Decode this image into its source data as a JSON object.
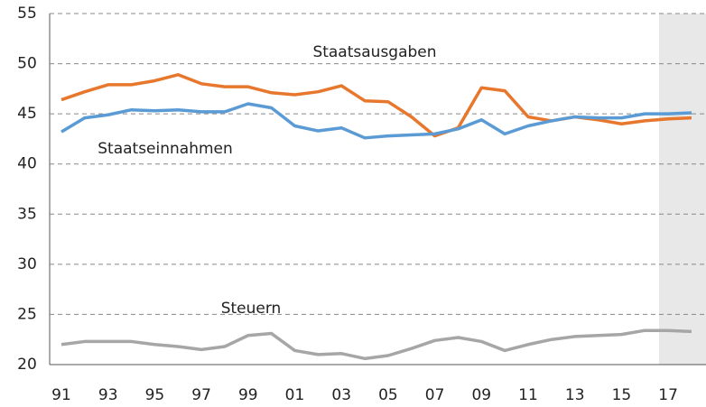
{
  "chart_data": {
    "type": "line",
    "categories": [
      "91",
      null,
      "93",
      null,
      "95",
      null,
      "97",
      null,
      "99",
      null,
      "01",
      null,
      "03",
      null,
      "05",
      null,
      "07",
      null,
      "09",
      null,
      "11",
      null,
      "13",
      null,
      "15",
      null,
      "17",
      null
    ],
    "series": [
      {
        "name": "Staatsausgaben",
        "color": "#e8772e",
        "values": [
          46.4,
          47.2,
          47.9,
          47.9,
          48.3,
          48.9,
          48.0,
          47.7,
          47.7,
          47.1,
          46.9,
          47.2,
          47.8,
          46.3,
          46.2,
          44.7,
          42.8,
          43.6,
          47.6,
          47.3,
          44.7,
          44.3,
          44.7,
          44.4,
          44.0,
          44.3,
          44.5,
          44.6
        ]
      },
      {
        "name": "Staatseinnahmen",
        "color": "#5b9bd5",
        "values": [
          43.2,
          44.6,
          44.9,
          45.4,
          45.3,
          45.4,
          45.2,
          45.2,
          46.0,
          45.6,
          43.8,
          43.3,
          43.6,
          42.6,
          42.8,
          42.9,
          43.0,
          43.5,
          44.4,
          43.0,
          43.8,
          44.3,
          44.7,
          44.6,
          44.6,
          45.0,
          45.0,
          45.1
        ]
      },
      {
        "name": "Steuern",
        "color": "#a6a6a6",
        "values": [
          22.0,
          22.3,
          22.3,
          22.3,
          22.0,
          21.8,
          21.5,
          21.8,
          22.9,
          23.1,
          21.4,
          21.0,
          21.1,
          20.6,
          20.9,
          21.6,
          22.4,
          22.7,
          22.3,
          21.4,
          22.0,
          22.5,
          22.8,
          22.9,
          23.0,
          23.4,
          23.4,
          23.3
        ]
      }
    ],
    "ylim": [
      20,
      55
    ],
    "yticks": [
      20,
      25,
      30,
      35,
      40,
      45,
      50,
      55
    ],
    "grid": true
  }
}
